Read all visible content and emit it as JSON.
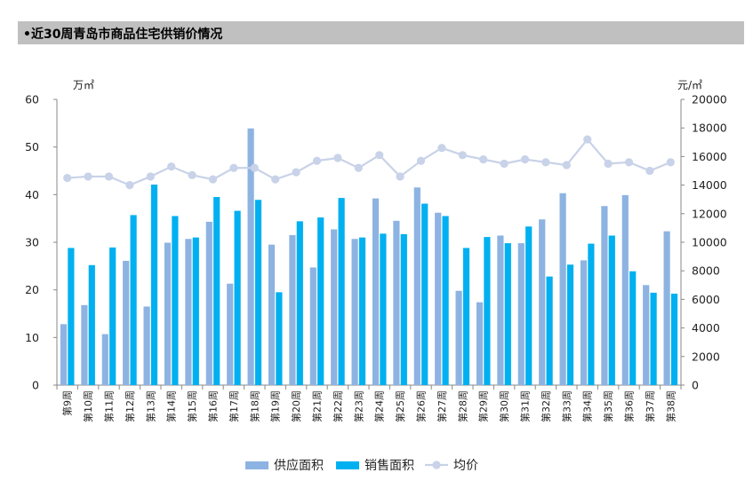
{
  "chart_data": {
    "type": "bar",
    "title": "•近30周青岛市商品住宅供销价情况",
    "y_left_unit": "万㎡",
    "y_right_unit": "元/㎡",
    "ylim_left": [
      0,
      60
    ],
    "ylim_right": [
      0,
      20000
    ],
    "yticks_left": [
      0,
      10,
      20,
      30,
      40,
      50,
      60
    ],
    "yticks_right": [
      0,
      2000,
      4000,
      6000,
      8000,
      10000,
      12000,
      14000,
      16000,
      18000,
      20000
    ],
    "categories": [
      "第9周",
      "第10周",
      "第11周",
      "第12周",
      "第13周",
      "第14周",
      "第15周",
      "第16周",
      "第17周",
      "第18周",
      "第19周",
      "第20周",
      "第21周",
      "第22周",
      "第23周",
      "第24周",
      "第25周",
      "第26周",
      "第27周",
      "第28周",
      "第29周",
      "第30周",
      "第31周",
      "第32周",
      "第33周",
      "第34周",
      "第35周",
      "第36周",
      "第37周",
      "第38周"
    ],
    "series": [
      {
        "name": "供应面积",
        "type": "bar",
        "axis": "left",
        "color": "#8db3e2",
        "values": [
          12.8,
          16.8,
          10.7,
          26.1,
          16.5,
          29.9,
          30.7,
          34.3,
          21.3,
          53.9,
          29.5,
          31.5,
          24.7,
          32.7,
          30.7,
          39.2,
          34.5,
          41.5,
          36.2,
          19.8,
          17.4,
          31.4,
          29.8,
          34.8,
          40.3,
          26.2,
          37.6,
          39.9,
          21.0,
          32.3
        ]
      },
      {
        "name": "销售面积",
        "type": "bar",
        "axis": "left",
        "color": "#00b0f0",
        "values": [
          28.8,
          25.2,
          28.9,
          35.7,
          42.1,
          35.5,
          31.0,
          39.5,
          36.6,
          38.9,
          19.5,
          34.4,
          35.2,
          39.3,
          31.0,
          31.8,
          31.7,
          38.1,
          35.5,
          28.8,
          31.1,
          29.8,
          33.3,
          22.8,
          25.3,
          29.7,
          31.4,
          23.9,
          19.4,
          19.2
        ]
      },
      {
        "name": "均价",
        "type": "line",
        "axis": "right",
        "color": "#c8d2e8",
        "values": [
          14500,
          14600,
          14600,
          14000,
          14600,
          15300,
          14700,
          14400,
          15200,
          15200,
          14400,
          14900,
          15700,
          15900,
          15200,
          16100,
          14600,
          15700,
          16600,
          16100,
          15800,
          15500,
          15800,
          15600,
          15400,
          17200,
          15500,
          15600,
          15000,
          15600
        ]
      }
    ],
    "legend_position": "bottom-center"
  }
}
